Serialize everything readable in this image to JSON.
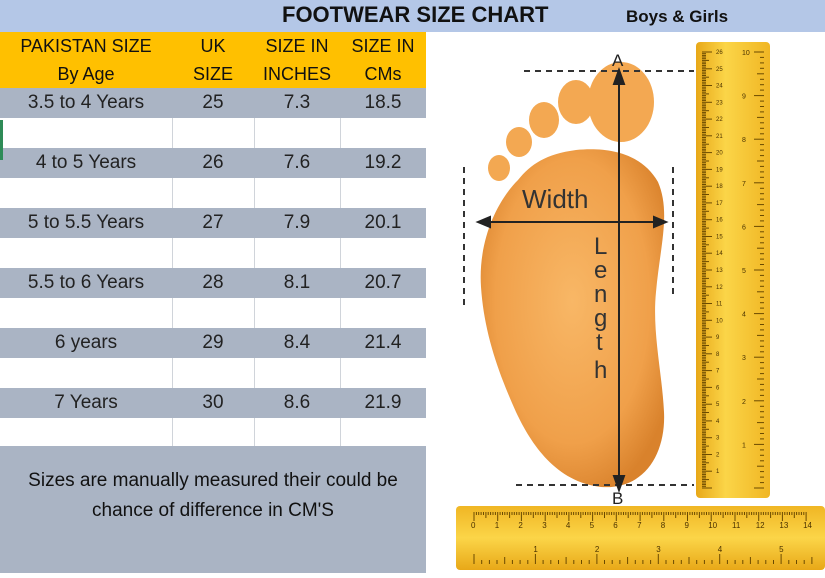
{
  "title": "FOOTWEAR SIZE CHART",
  "subtitle": "Boys & Girls",
  "headers": [
    [
      "PAKISTAN  SIZE",
      "By Age"
    ],
    [
      "UK",
      "SIZE"
    ],
    [
      "SIZE IN",
      "INCHES"
    ],
    [
      "SIZE IN",
      "CMs"
    ]
  ],
  "rows": [
    {
      "age": "3.5 to 4 Years",
      "uk": "25",
      "inches": "7.3",
      "cm": "18.5"
    },
    {
      "age": "4 to 5 Years",
      "uk": "26",
      "inches": "7.6",
      "cm": "19.2"
    },
    {
      "age": "5 to 5.5 Years",
      "uk": "27",
      "inches": "7.9",
      "cm": "20.1"
    },
    {
      "age": "5.5 to 6 Years",
      "uk": "28",
      "inches": "8.1",
      "cm": "20.7"
    },
    {
      "age": "6 years",
      "uk": "29",
      "inches": "8.4",
      "cm": "21.4"
    },
    {
      "age": "7 Years",
      "uk": "30",
      "inches": "8.6",
      "cm": "21.9"
    }
  ],
  "note": [
    "Sizes are manually measured their could be",
    "chance of difference in CM'S"
  ],
  "illustration": {
    "point_a": "A",
    "point_b": "B",
    "width_label": "Width",
    "length_letters": [
      "L",
      "e",
      "n",
      "g",
      "t",
      "h"
    ],
    "ruler_v_cm": [
      "1",
      "2",
      "3",
      "4",
      "5",
      "6",
      "7",
      "8",
      "9",
      "10",
      "11",
      "12",
      "13",
      "14",
      "15",
      "16",
      "17",
      "18",
      "19",
      "20",
      "21",
      "22",
      "23",
      "24",
      "25",
      "26"
    ],
    "ruler_v_in": [
      "1",
      "2",
      "3",
      "4",
      "5",
      "6",
      "7",
      "8",
      "9",
      "10"
    ],
    "ruler_h_cm": [
      "0",
      "1",
      "2",
      "3",
      "4",
      "5",
      "6",
      "7",
      "8",
      "9",
      "10",
      "11",
      "12",
      "13",
      "14"
    ],
    "ruler_h_in": [
      "1",
      "2",
      "3",
      "4",
      "5"
    ]
  },
  "colors": {
    "title_bar": "#b4c7e7",
    "header": "#ffc000",
    "data_row": "#aab4c4",
    "foot": "#f5a94f",
    "ruler": "#f7c832"
  }
}
